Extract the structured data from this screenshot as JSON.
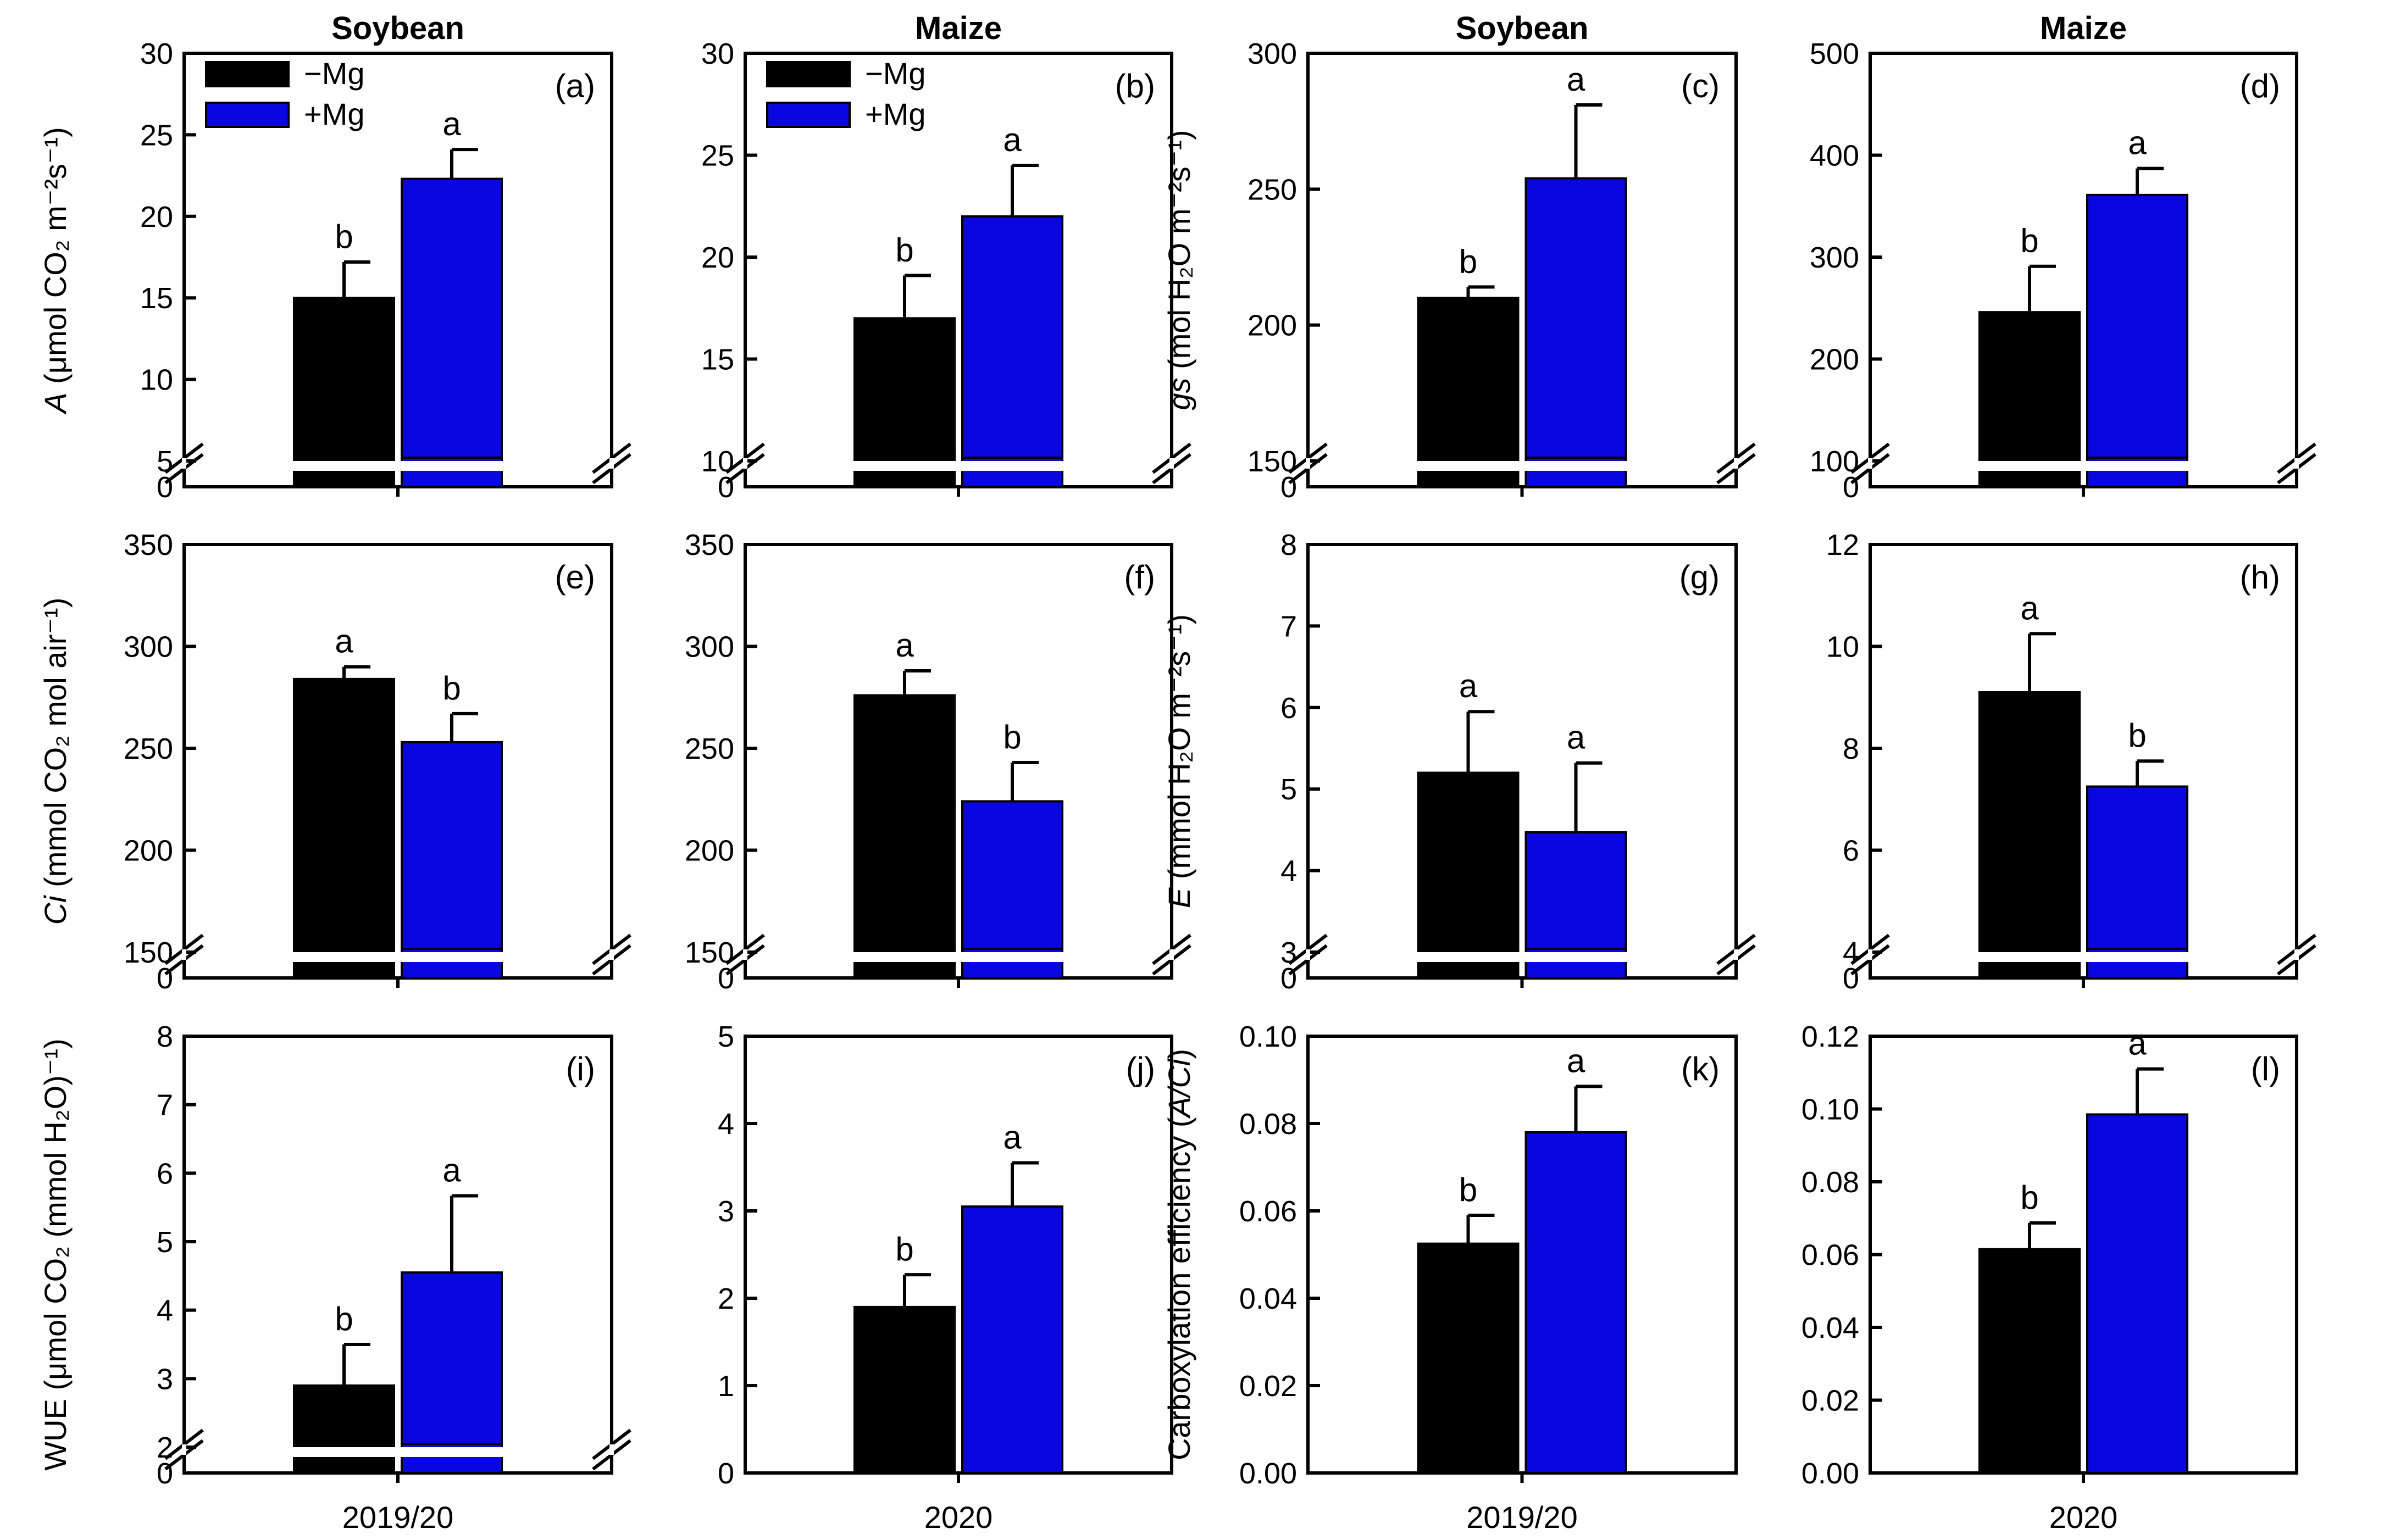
{
  "colors": {
    "minus_mg": "#000000",
    "plus_mg": "#0a06e0"
  },
  "legend": {
    "minus_label": "−Mg",
    "plus_label": "+Mg"
  },
  "chart_data": [
    {
      "id": "a",
      "type": "bar",
      "crop": "Soybean",
      "title": "Soybean",
      "panel_label": "(a)",
      "category": "2019/20",
      "ylabel_italic": "A",
      "ylabel_rest": " (μmol CO₂ m⁻²s⁻¹)",
      "axis_break": true,
      "ylim": [
        5,
        30
      ],
      "yticks": [
        5,
        10,
        15,
        20,
        25,
        30
      ],
      "zero_label": "0",
      "show_legend": true,
      "series": [
        {
          "name": "−Mg",
          "value": 15.0,
          "error": 2.2,
          "letter": "b"
        },
        {
          "name": "+Mg",
          "value": 22.3,
          "error": 1.8,
          "letter": "a"
        }
      ]
    },
    {
      "id": "b",
      "type": "bar",
      "crop": "Maize",
      "title": "Maize",
      "panel_label": "(b)",
      "category": "2020",
      "ylabel_italic": "",
      "ylabel_rest": "",
      "axis_break": true,
      "ylim": [
        10,
        30
      ],
      "yticks": [
        10,
        15,
        20,
        25,
        30
      ],
      "zero_label": "0",
      "show_legend": true,
      "series": [
        {
          "name": "−Mg",
          "value": 17.0,
          "error": 2.1,
          "letter": "b"
        },
        {
          "name": "+Mg",
          "value": 22.0,
          "error": 2.5,
          "letter": "a"
        }
      ]
    },
    {
      "id": "c",
      "type": "bar",
      "crop": "Soybean",
      "title": "Soybean",
      "panel_label": "(c)",
      "category": "2019/20",
      "ylabel_italic": "gs",
      "ylabel_rest": " (mol H₂O m⁻²s⁻¹)",
      "axis_break": true,
      "ylim": [
        150,
        300
      ],
      "yticks": [
        150,
        200,
        250,
        300
      ],
      "zero_label": "0",
      "series": [
        {
          "name": "−Mg",
          "value": 210,
          "error": 4,
          "letter": "b"
        },
        {
          "name": "+Mg",
          "value": 254,
          "error": 27,
          "letter": "a"
        }
      ]
    },
    {
      "id": "d",
      "type": "bar",
      "crop": "Maize",
      "title": "Maize",
      "panel_label": "(d)",
      "category": "2020",
      "ylabel_italic": "",
      "ylabel_rest": "",
      "axis_break": true,
      "ylim": [
        100,
        500
      ],
      "yticks": [
        100,
        200,
        300,
        400,
        500
      ],
      "zero_label": "0",
      "series": [
        {
          "name": "−Mg",
          "value": 246,
          "error": 45,
          "letter": "b"
        },
        {
          "name": "+Mg",
          "value": 361,
          "error": 26,
          "letter": "a"
        }
      ]
    },
    {
      "id": "e",
      "type": "bar",
      "panel_label": "(e)",
      "category": "2019/20",
      "ylabel_italic": "Ci",
      "ylabel_rest": " (mmol CO₂ mol air⁻¹)",
      "axis_break": true,
      "ylim": [
        150,
        350
      ],
      "yticks": [
        150,
        200,
        250,
        300,
        350
      ],
      "zero_label": "0",
      "series": [
        {
          "name": "−Mg",
          "value": 284,
          "error": 6,
          "letter": "a"
        },
        {
          "name": "+Mg",
          "value": 253,
          "error": 14,
          "letter": "b"
        }
      ]
    },
    {
      "id": "f",
      "type": "bar",
      "panel_label": "(f)",
      "category": "2020",
      "ylabel_italic": "",
      "ylabel_rest": "",
      "axis_break": true,
      "ylim": [
        150,
        350
      ],
      "yticks": [
        150,
        200,
        250,
        300,
        350
      ],
      "zero_label": "0",
      "series": [
        {
          "name": "−Mg",
          "value": 276,
          "error": 12,
          "letter": "a"
        },
        {
          "name": "+Mg",
          "value": 224,
          "error": 19,
          "letter": "b"
        }
      ]
    },
    {
      "id": "g",
      "type": "bar",
      "panel_label": "(g)",
      "category": "2019/20",
      "ylabel_italic": "E",
      "ylabel_rest": " (mmol H₂O m⁻²s⁻¹)",
      "axis_break": true,
      "ylim": [
        3,
        8
      ],
      "yticks": [
        3,
        4,
        5,
        6,
        7,
        8
      ],
      "zero_label": "0",
      "series": [
        {
          "name": "−Mg",
          "value": 5.2,
          "error": 0.75,
          "letter": "a"
        },
        {
          "name": "+Mg",
          "value": 4.47,
          "error": 0.85,
          "letter": "a"
        }
      ]
    },
    {
      "id": "h",
      "type": "bar",
      "panel_label": "(h)",
      "category": "2020",
      "ylabel_italic": "",
      "ylabel_rest": "",
      "axis_break": true,
      "ylim": [
        4,
        12
      ],
      "yticks": [
        4,
        6,
        8,
        10,
        12
      ],
      "zero_label": "0",
      "series": [
        {
          "name": "−Mg",
          "value": 9.1,
          "error": 1.15,
          "letter": "a"
        },
        {
          "name": "+Mg",
          "value": 7.25,
          "error": 0.5,
          "letter": "b"
        }
      ]
    },
    {
      "id": "i",
      "type": "bar",
      "panel_label": "(i)",
      "category": "2019/20",
      "ylabel_italic": "",
      "ylabel_rest": "WUE (μmol CO₂ (mmol H₂O)⁻¹)",
      "axis_break": true,
      "ylim": [
        2,
        8
      ],
      "yticks": [
        2,
        3,
        4,
        5,
        6,
        7,
        8
      ],
      "zero_label": "0",
      "series": [
        {
          "name": "−Mg",
          "value": 2.9,
          "error": 0.6,
          "letter": "b"
        },
        {
          "name": "+Mg",
          "value": 4.55,
          "error": 1.12,
          "letter": "a"
        }
      ]
    },
    {
      "id": "j",
      "type": "bar",
      "panel_label": "(j)",
      "category": "2020",
      "ylabel_italic": "",
      "ylabel_rest": "",
      "axis_break": false,
      "ylim": [
        0,
        5
      ],
      "yticks": [
        0,
        1,
        2,
        3,
        4,
        5
      ],
      "series": [
        {
          "name": "−Mg",
          "value": 1.9,
          "error": 0.37,
          "letter": "b"
        },
        {
          "name": "+Mg",
          "value": 3.05,
          "error": 0.5,
          "letter": "a"
        }
      ]
    },
    {
      "id": "k",
      "type": "bar",
      "panel_label": "(k)",
      "category": "2019/20",
      "ylabel_italic": "",
      "ylabel_rest": "Carboxylation efficiency (",
      "ylabel_italic2": "A/Ci",
      "ylabel_tail": ")",
      "axis_break": false,
      "ylim": [
        0,
        0.1
      ],
      "yticks": [
        "0.00",
        "0.02",
        "0.04",
        "0.06",
        "0.08",
        "0.10"
      ],
      "series": [
        {
          "name": "−Mg",
          "value": 0.0525,
          "error": 0.0065,
          "letter": "b"
        },
        {
          "name": "+Mg",
          "value": 0.078,
          "error": 0.0105,
          "letter": "a"
        }
      ]
    },
    {
      "id": "l",
      "type": "bar",
      "panel_label": "(l)",
      "category": "2020",
      "ylabel_italic": "",
      "ylabel_rest": "",
      "axis_break": false,
      "ylim": [
        0,
        0.12
      ],
      "yticks": [
        "0.00",
        "0.02",
        "0.04",
        "0.06",
        "0.08",
        "0.10",
        "0.12"
      ],
      "series": [
        {
          "name": "−Mg",
          "value": 0.0615,
          "error": 0.0072,
          "letter": "b"
        },
        {
          "name": "+Mg",
          "value": 0.0985,
          "error": 0.0125,
          "letter": "a"
        }
      ]
    }
  ]
}
